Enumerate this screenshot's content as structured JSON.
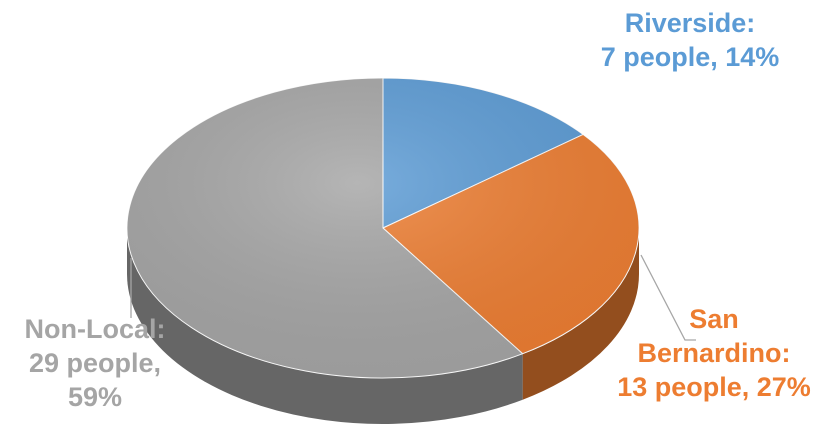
{
  "chart_data": {
    "type": "pie",
    "style": "3d",
    "slices": [
      {
        "name": "Riverside",
        "value": 7,
        "percent": 14,
        "color": "#5B9BD5",
        "label_lines": [
          "Riverside:",
          "7 people, 14%"
        ]
      },
      {
        "name": "San Bernardino",
        "value": 13,
        "percent": 27,
        "color": "#ED7D31",
        "label_lines": [
          "San",
          "Bernardino:",
          "13 people, 27%"
        ]
      },
      {
        "name": "Non-Local",
        "value": 29,
        "percent": 59,
        "color": "#A5A5A5",
        "label_lines": [
          "Non-Local:",
          "29 people,",
          "59%"
        ]
      }
    ]
  }
}
